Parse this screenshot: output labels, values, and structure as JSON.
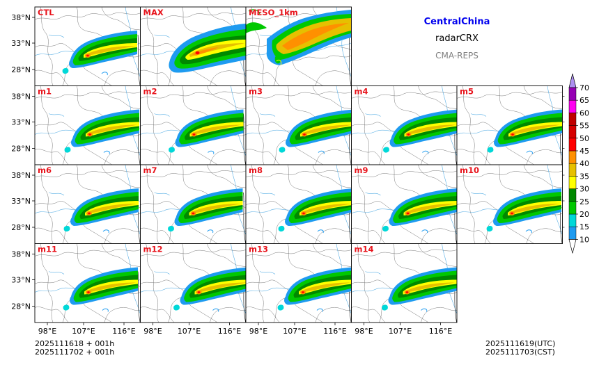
{
  "header": {
    "region": "CentralChina",
    "product": "radarCRX",
    "system": "CMA-REPS",
    "region_color": "#0000ee",
    "system_color": "#7f7f7f"
  },
  "panels": [
    {
      "label": "CTL",
      "row": 0,
      "col": 0,
      "style": "member"
    },
    {
      "label": "MAX",
      "row": 0,
      "col": 1,
      "style": "max"
    },
    {
      "label": "MESO_1km",
      "row": 0,
      "col": 2,
      "style": "meso"
    },
    {
      "label": "m1",
      "row": 1,
      "col": 0,
      "style": "member"
    },
    {
      "label": "m2",
      "row": 1,
      "col": 1,
      "style": "member"
    },
    {
      "label": "m3",
      "row": 1,
      "col": 2,
      "style": "member"
    },
    {
      "label": "m4",
      "row": 1,
      "col": 3,
      "style": "member"
    },
    {
      "label": "m5",
      "row": 1,
      "col": 4,
      "style": "member"
    },
    {
      "label": "m6",
      "row": 2,
      "col": 0,
      "style": "member"
    },
    {
      "label": "m7",
      "row": 2,
      "col": 1,
      "style": "member"
    },
    {
      "label": "m8",
      "row": 2,
      "col": 2,
      "style": "member"
    },
    {
      "label": "m9",
      "row": 2,
      "col": 3,
      "style": "member"
    },
    {
      "label": "m10",
      "row": 2,
      "col": 4,
      "style": "member"
    },
    {
      "label": "m11",
      "row": 3,
      "col": 0,
      "style": "member"
    },
    {
      "label": "m12",
      "row": 3,
      "col": 1,
      "style": "member"
    },
    {
      "label": "m13",
      "row": 3,
      "col": 2,
      "style": "member"
    },
    {
      "label": "m14",
      "row": 3,
      "col": 3,
      "style": "member"
    }
  ],
  "axes": {
    "lat_ticks": [
      "38°N",
      "33°N",
      "28°N"
    ],
    "lon_ticks": [
      "98°E",
      "107°E",
      "116°E"
    ]
  },
  "colorbar": {
    "levels": [
      "10",
      "15",
      "20",
      "25",
      "30",
      "35",
      "40",
      "45",
      "50",
      "55",
      "60",
      "65",
      "70"
    ],
    "colors": [
      "#1e9bf0",
      "#00d8d8",
      "#00c800",
      "#008800",
      "#ffff00",
      "#e6c000",
      "#ff9000",
      "#ff0000",
      "#d60000",
      "#c00000",
      "#ff00f0",
      "#9600b4",
      "#ad90f0"
    ],
    "under_color": "#ffffff",
    "over_color": "#ad90f0"
  },
  "footer": {
    "init_utc": "2025111618  +  001h",
    "init_cst": "2025111702  +  001h",
    "valid_utc": "2025111619(UTC)",
    "valid_cst": "2025111703(CST)"
  }
}
